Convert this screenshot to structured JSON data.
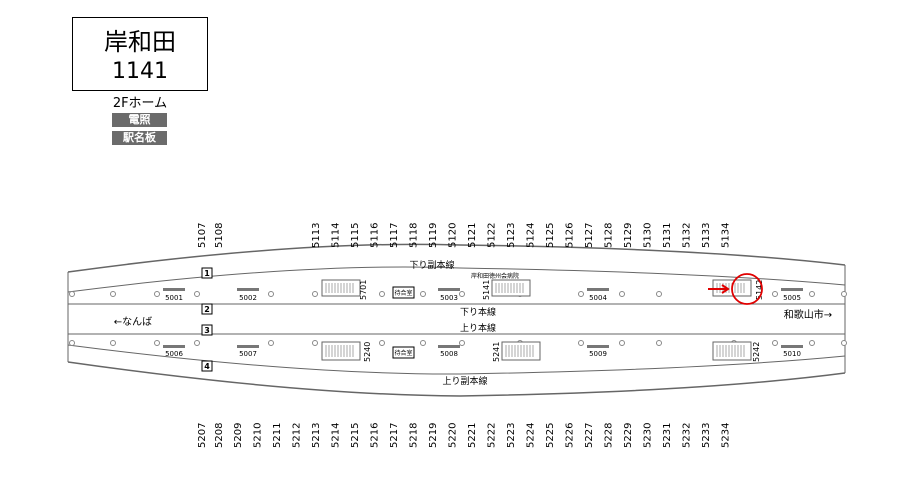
{
  "station": {
    "name": "岸和田",
    "code": "1141",
    "floor": "2Fホーム"
  },
  "tags": [
    "電照",
    "駅名板"
  ],
  "tracks": {
    "down_sub": "下り副本線",
    "down_main": "下り本線",
    "up_main": "上り本線",
    "up_sub": "上り副本線",
    "numbers": [
      "1",
      "2",
      "3",
      "4"
    ]
  },
  "directions": {
    "left": "←なんば",
    "right": "和歌山市→"
  },
  "hospital_label": "岸和田徳州会病院",
  "waiting_room": "待合室",
  "top_ids": [
    "5107",
    "5108",
    "5113",
    "5114",
    "5115",
    "5116",
    "5117",
    "5118",
    "5119",
    "5120",
    "5121",
    "5122",
    "5123",
    "5124",
    "5125",
    "5126",
    "5127",
    "5128",
    "5129",
    "5130",
    "5131",
    "5132",
    "5133",
    "5134"
  ],
  "bottom_ids": [
    "5207",
    "5208",
    "5209",
    "5210",
    "5211",
    "5212",
    "5213",
    "5214",
    "5215",
    "5216",
    "5217",
    "5218",
    "5219",
    "5220",
    "5221",
    "5222",
    "5223",
    "5224",
    "5225",
    "5226",
    "5227",
    "5228",
    "5229",
    "5230",
    "5231",
    "5232",
    "5233",
    "5234"
  ],
  "signs_upper": [
    "5001",
    "5002",
    "5003",
    "5004",
    "5005"
  ],
  "signs_lower": [
    "5006",
    "5007",
    "5008",
    "5009",
    "5010"
  ],
  "stairs_upper": [
    "5701",
    "5141",
    "5142"
  ],
  "stairs_lower": [
    "5240",
    "5241",
    "5242"
  ],
  "highlight": {
    "target": "5142",
    "color": "#e00000"
  }
}
